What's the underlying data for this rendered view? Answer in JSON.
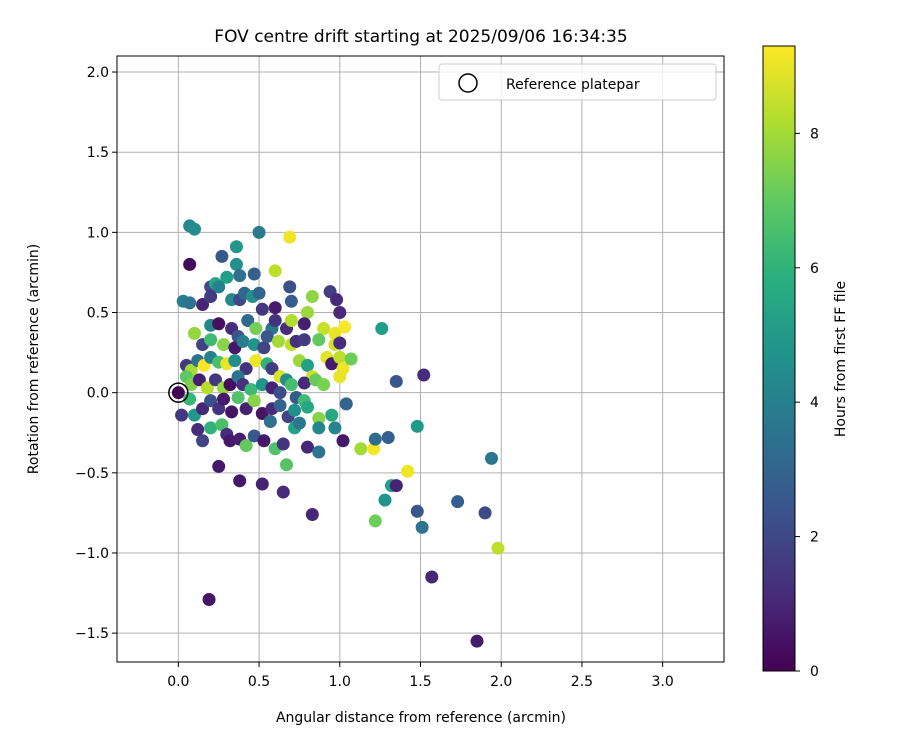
{
  "chart_data": {
    "type": "scatter",
    "title": "FOV centre drift starting at 2025/09/06 16:34:35",
    "xlabel": "Angular distance from reference (arcmin)",
    "ylabel": "Rotation from reference (arcmin)",
    "xlim": [
      -0.38,
      3.38
    ],
    "ylim": [
      -1.68,
      2.1
    ],
    "xticks": [
      "0.0",
      "0.5",
      "1.0",
      "1.5",
      "2.0",
      "2.5",
      "3.0"
    ],
    "xtick_values": [
      0,
      0.5,
      1.0,
      1.5,
      2.0,
      2.5,
      3.0
    ],
    "yticks": [
      "−1.5",
      "−1.0",
      "−0.5",
      "0.0",
      "0.5",
      "1.0",
      "1.5",
      "2.0"
    ],
    "ytick_values": [
      -1.5,
      -1.0,
      -0.5,
      0,
      0.5,
      1.0,
      1.5,
      2.0
    ],
    "grid": true,
    "legend": {
      "position": "top-right",
      "label": "Reference platepar"
    },
    "reference_point": {
      "x": 0,
      "y": 0
    },
    "colorbar": {
      "label": "Hours from first FF file",
      "range": [
        0,
        9.3
      ],
      "ticks": [
        "0",
        "2",
        "4",
        "6",
        "8"
      ],
      "tick_values": [
        0,
        2,
        4,
        6,
        8
      ],
      "colormap": "viridis"
    },
    "points": [
      [
        0.07,
        1.04,
        4.3
      ],
      [
        0.1,
        1.02,
        4.5
      ],
      [
        0.5,
        1.0,
        3.8
      ],
      [
        0.69,
        0.97,
        9.1
      ],
      [
        0.07,
        0.8,
        0.2
      ],
      [
        0.27,
        0.85,
        2.6
      ],
      [
        0.36,
        0.91,
        4.9
      ],
      [
        0.36,
        0.8,
        4.7
      ],
      [
        0.6,
        0.76,
        8.4
      ],
      [
        0.3,
        0.72,
        5.2
      ],
      [
        0.38,
        0.73,
        3.4
      ],
      [
        0.47,
        0.74,
        2.8
      ],
      [
        0.2,
        0.66,
        2.0
      ],
      [
        0.23,
        0.68,
        5.5
      ],
      [
        0.25,
        0.66,
        4.1
      ],
      [
        0.69,
        0.66,
        2.3
      ],
      [
        0.03,
        0.57,
        4.0
      ],
      [
        0.07,
        0.56,
        3.5
      ],
      [
        0.15,
        0.55,
        0.9
      ],
      [
        0.2,
        0.6,
        1.6
      ],
      [
        0.33,
        0.58,
        4.4
      ],
      [
        0.38,
        0.58,
        2.0
      ],
      [
        0.41,
        0.62,
        3.1
      ],
      [
        0.46,
        0.6,
        4.7
      ],
      [
        0.5,
        0.62,
        3.0
      ],
      [
        0.52,
        0.52,
        1.5
      ],
      [
        0.6,
        0.53,
        0.7
      ],
      [
        0.7,
        0.57,
        2.7
      ],
      [
        0.83,
        0.6,
        7.7
      ],
      [
        0.94,
        0.63,
        1.7
      ],
      [
        0.98,
        0.58,
        1.1
      ],
      [
        0.8,
        0.5,
        7.9
      ],
      [
        0.2,
        0.42,
        4.3
      ],
      [
        0.25,
        0.43,
        0.4
      ],
      [
        0.33,
        0.4,
        1.2
      ],
      [
        0.37,
        0.35,
        2.4
      ],
      [
        0.43,
        0.45,
        3.2
      ],
      [
        0.48,
        0.4,
        7.3
      ],
      [
        0.58,
        0.4,
        3.7
      ],
      [
        0.6,
        0.45,
        1.4
      ],
      [
        0.67,
        0.4,
        1.2
      ],
      [
        0.7,
        0.45,
        8.2
      ],
      [
        0.78,
        0.43,
        0.8
      ],
      [
        0.9,
        0.4,
        8.5
      ],
      [
        0.97,
        0.37,
        9.0
      ],
      [
        1.0,
        0.5,
        1.1
      ],
      [
        1.03,
        0.41,
        9.2
      ],
      [
        1.26,
        0.4,
        5.2
      ],
      [
        0.1,
        0.37,
        7.8
      ],
      [
        0.15,
        0.3,
        1.8
      ],
      [
        0.2,
        0.33,
        6.4
      ],
      [
        0.28,
        0.3,
        7.6
      ],
      [
        0.35,
        0.28,
        0.6
      ],
      [
        0.4,
        0.32,
        3.9
      ],
      [
        0.47,
        0.3,
        4.8
      ],
      [
        0.53,
        0.28,
        1.9
      ],
      [
        0.55,
        0.35,
        2.5
      ],
      [
        0.62,
        0.32,
        8.0
      ],
      [
        0.7,
        0.3,
        8.4
      ],
      [
        0.73,
        0.32,
        1.3
      ],
      [
        0.78,
        0.33,
        1.6
      ],
      [
        0.87,
        0.33,
        7.0
      ],
      [
        0.97,
        0.3,
        8.7
      ],
      [
        1.0,
        0.31,
        1.2
      ],
      [
        0.05,
        0.17,
        1.6
      ],
      [
        0.08,
        0.14,
        8.1
      ],
      [
        0.12,
        0.2,
        3.5
      ],
      [
        0.16,
        0.17,
        9.3
      ],
      [
        0.2,
        0.22,
        4.1
      ],
      [
        0.25,
        0.19,
        6.6
      ],
      [
        0.3,
        0.18,
        9.0
      ],
      [
        0.35,
        0.2,
        4.6
      ],
      [
        0.42,
        0.15,
        1.4
      ],
      [
        0.48,
        0.2,
        9.1
      ],
      [
        0.55,
        0.18,
        6.0
      ],
      [
        0.58,
        0.15,
        1.7
      ],
      [
        0.63,
        0.1,
        8.8
      ],
      [
        0.67,
        0.08,
        4.5
      ],
      [
        0.75,
        0.2,
        7.9
      ],
      [
        0.8,
        0.17,
        5.3
      ],
      [
        0.83,
        0.1,
        8.6
      ],
      [
        0.92,
        0.22,
        8.9
      ],
      [
        0.95,
        0.18,
        0.7
      ],
      [
        1.0,
        0.22,
        8.4
      ],
      [
        1.02,
        0.15,
        9.1
      ],
      [
        1.07,
        0.21,
        7.2
      ],
      [
        1.35,
        0.07,
        2.5
      ],
      [
        1.52,
        0.11,
        1.2
      ],
      [
        0.05,
        0.1,
        6.9
      ],
      [
        0.08,
        0.05,
        7.5
      ],
      [
        0.13,
        0.08,
        0.8
      ],
      [
        0.18,
        0.03,
        8.3
      ],
      [
        0.23,
        0.08,
        1.5
      ],
      [
        0.28,
        0.03,
        7.8
      ],
      [
        0.32,
        0.05,
        0.3
      ],
      [
        0.37,
        0.1,
        3.6
      ],
      [
        0.4,
        0.05,
        1.3
      ],
      [
        0.45,
        0.02,
        6.3
      ],
      [
        0.52,
        0.05,
        4.8
      ],
      [
        0.58,
        0.03,
        0.9
      ],
      [
        0.63,
        0.0,
        2.2
      ],
      [
        0.7,
        0.05,
        6.5
      ],
      [
        0.73,
        -0.03,
        2.7
      ],
      [
        0.78,
        0.06,
        1.1
      ],
      [
        0.85,
        0.08,
        7.1
      ],
      [
        0.9,
        0.05,
        7.4
      ],
      [
        1.0,
        0.1,
        9.0
      ],
      [
        0.02,
        -0.14,
        1.5
      ],
      [
        0.07,
        -0.04,
        6.2
      ],
      [
        0.1,
        -0.14,
        5.0
      ],
      [
        0.15,
        -0.1,
        1.0
      ],
      [
        0.2,
        -0.05,
        2.3
      ],
      [
        0.25,
        -0.1,
        1.3
      ],
      [
        0.28,
        -0.04,
        0.7
      ],
      [
        0.33,
        -0.12,
        0.5
      ],
      [
        0.37,
        -0.03,
        6.7
      ],
      [
        0.42,
        -0.1,
        0.9
      ],
      [
        0.47,
        -0.05,
        7.6
      ],
      [
        0.52,
        -0.13,
        0.5
      ],
      [
        0.58,
        -0.1,
        1.1
      ],
      [
        0.63,
        -0.08,
        2.9
      ],
      [
        0.68,
        -0.15,
        1.9
      ],
      [
        0.72,
        -0.11,
        4.7
      ],
      [
        0.78,
        -0.05,
        6.4
      ],
      [
        0.8,
        -0.09,
        5.6
      ],
      [
        0.87,
        -0.16,
        7.6
      ],
      [
        0.95,
        -0.14,
        5.6
      ],
      [
        1.04,
        -0.07,
        3.0
      ],
      [
        0.12,
        -0.23,
        1.2
      ],
      [
        0.15,
        -0.3,
        1.9
      ],
      [
        0.2,
        -0.22,
        6.0
      ],
      [
        0.27,
        -0.2,
        6.6
      ],
      [
        0.3,
        -0.26,
        1.2
      ],
      [
        0.32,
        -0.3,
        0.6
      ],
      [
        0.38,
        -0.29,
        0.8
      ],
      [
        0.42,
        -0.33,
        7.0
      ],
      [
        0.47,
        -0.27,
        2.6
      ],
      [
        0.53,
        -0.3,
        0.6
      ],
      [
        0.57,
        -0.18,
        3.4
      ],
      [
        0.6,
        -0.35,
        6.7
      ],
      [
        0.65,
        -0.32,
        1.4
      ],
      [
        0.72,
        -0.22,
        5.3
      ],
      [
        0.75,
        -0.19,
        3.7
      ],
      [
        0.8,
        -0.34,
        1.0
      ],
      [
        0.87,
        -0.37,
        3.6
      ],
      [
        0.87,
        -0.22,
        4.3
      ],
      [
        0.97,
        -0.22,
        4.2
      ],
      [
        1.02,
        -0.3,
        0.6
      ],
      [
        1.13,
        -0.35,
        8.0
      ],
      [
        1.21,
        -0.35,
        9.2
      ],
      [
        1.22,
        -0.29,
        3.3
      ],
      [
        1.3,
        -0.28,
        2.8
      ],
      [
        1.48,
        -0.21,
        5.0
      ],
      [
        0.25,
        -0.46,
        0.6
      ],
      [
        0.38,
        -0.55,
        0.6
      ],
      [
        0.52,
        -0.57,
        0.9
      ],
      [
        0.65,
        -0.62,
        1.1
      ],
      [
        0.67,
        -0.45,
        6.8
      ],
      [
        1.28,
        -0.67,
        4.8
      ],
      [
        1.32,
        -0.58,
        5.3
      ],
      [
        1.35,
        -0.58,
        0.9
      ],
      [
        1.42,
        -0.49,
        9.1
      ],
      [
        1.48,
        -0.74,
        2.5
      ],
      [
        1.73,
        -0.68,
        2.8
      ],
      [
        1.9,
        -0.75,
        2.1
      ],
      [
        1.94,
        -0.41,
        3.6
      ],
      [
        0.83,
        -0.76,
        1.0
      ],
      [
        1.22,
        -0.8,
        7.2
      ],
      [
        1.51,
        -0.84,
        3.5
      ],
      [
        1.98,
        -0.97,
        8.4
      ],
      [
        1.57,
        -1.15,
        1.0
      ],
      [
        0.19,
        -1.29,
        0.5
      ],
      [
        1.85,
        -1.55,
        0.7
      ]
    ]
  }
}
